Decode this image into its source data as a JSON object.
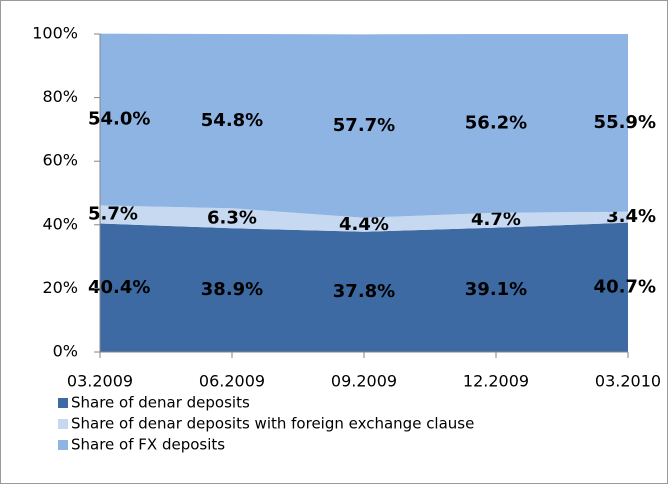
{
  "chart_data": {
    "type": "stacked_area",
    "categories": [
      "03.2009",
      "06.2009",
      "09.2009",
      "12.2009",
      "03.2010"
    ],
    "series": [
      {
        "name": "Share of denar deposits",
        "color": "#3e6aa3",
        "values": [
          40.4,
          38.9,
          37.8,
          39.1,
          40.7
        ],
        "value_labels": [
          "40.4%",
          "38.9%",
          "37.8%",
          "39.1%",
          "40.7%"
        ]
      },
      {
        "name": "Share of denar deposits with foreign exchange clause",
        "color": "#c6d9f1",
        "values": [
          5.7,
          6.3,
          4.4,
          4.7,
          3.4
        ],
        "value_labels": [
          "5.7%",
          "6.3%",
          "4.4%",
          "4.7%",
          "3.4%"
        ]
      },
      {
        "name": "Share of FX deposits",
        "color": "#8eb4e3",
        "values": [
          54.0,
          54.8,
          57.7,
          56.2,
          55.9
        ],
        "value_labels": [
          "54.0%",
          "54.8%",
          "57.7%",
          "56.2%",
          "55.9%"
        ]
      }
    ],
    "ylim": [
      0,
      100
    ],
    "yticks": [
      {
        "value": 0,
        "label": "0%"
      },
      {
        "value": 20,
        "label": "20%"
      },
      {
        "value": 40,
        "label": "40%"
      },
      {
        "value": 60,
        "label": "60%"
      },
      {
        "value": 80,
        "label": "80%"
      },
      {
        "value": 100,
        "label": "100%"
      }
    ],
    "grid": false
  }
}
